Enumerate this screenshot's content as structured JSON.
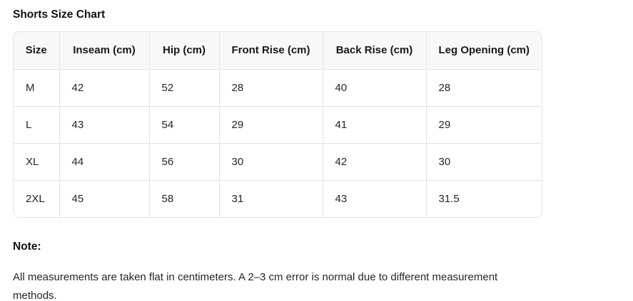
{
  "page": {
    "title": "Shorts Size Chart"
  },
  "table": {
    "columns": [
      "Size",
      "Inseam (cm)",
      "Hip (cm)",
      "Front Rise (cm)",
      "Back Rise (cm)",
      "Leg Opening (cm)"
    ],
    "rows": [
      [
        "M",
        "42",
        "52",
        "28",
        "40",
        "28"
      ],
      [
        "L",
        "43",
        "54",
        "29",
        "41",
        "29"
      ],
      [
        "XL",
        "44",
        "56",
        "30",
        "42",
        "30"
      ],
      [
        "2XL",
        "45",
        "58",
        "31",
        "43",
        "31.5"
      ]
    ]
  },
  "note": {
    "heading": "Note:",
    "lines": [
      "All measurements are taken flat in centimeters. A 2–3 cm error is normal due to different measurement",
      "methods."
    ]
  },
  "colors": {
    "header_bg": "#f8f8f8",
    "border": "#e4e4e4",
    "title_text": "#111111",
    "body_text": "#262626"
  }
}
